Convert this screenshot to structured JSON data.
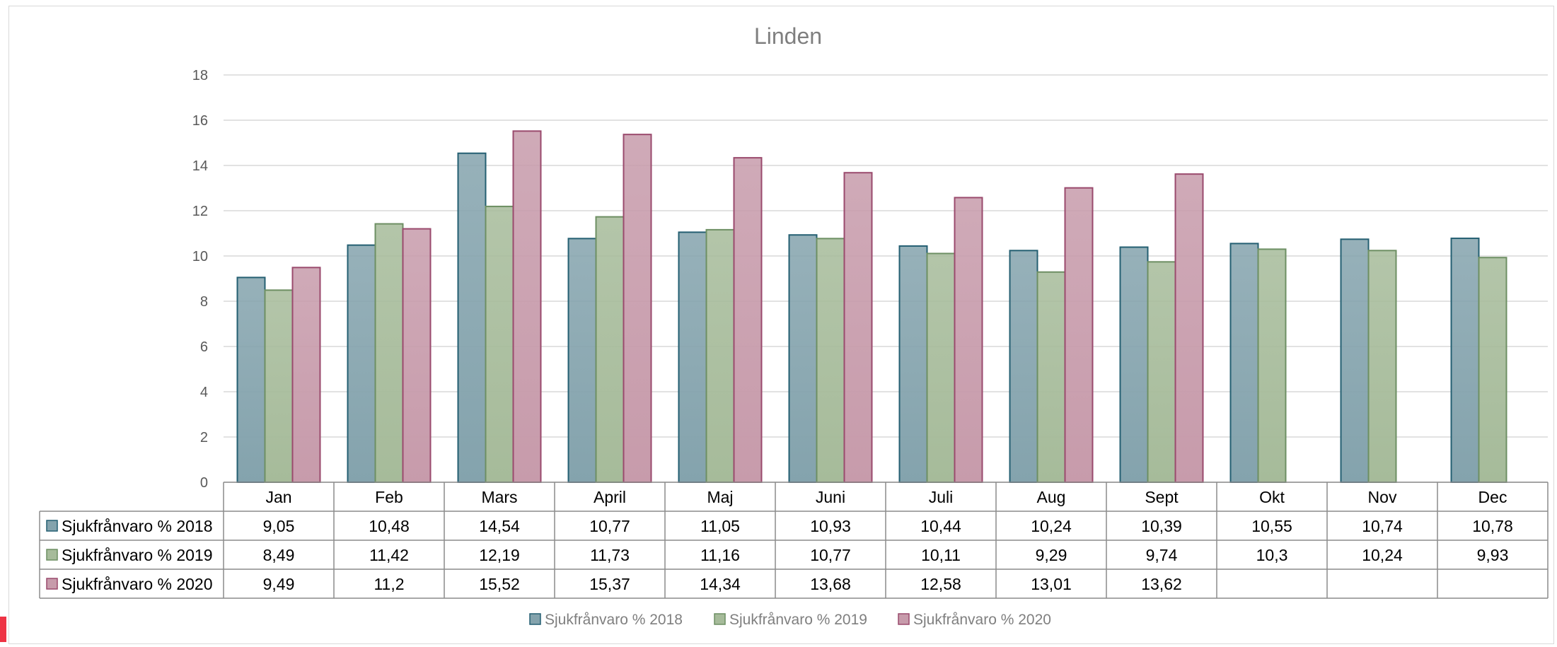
{
  "chart_data": {
    "type": "bar",
    "title": "Linden",
    "categories": [
      "Jan",
      "Feb",
      "Mars",
      "April",
      "Maj",
      "Juni",
      "Juli",
      "Aug",
      "Sept",
      "Okt",
      "Nov",
      "Dec"
    ],
    "ylim": [
      0,
      18
    ],
    "yticks": [
      "0",
      "2",
      "4",
      "6",
      "8",
      "10",
      "12",
      "14",
      "16",
      "18"
    ],
    "grid": true,
    "legend_position": "bottom",
    "series": [
      {
        "name": "Sjukfrånvaro % 2018",
        "color": "#84a3ad",
        "stroke": "#245f72",
        "values": [
          9.05,
          10.48,
          14.54,
          10.77,
          11.05,
          10.93,
          10.44,
          10.24,
          10.39,
          10.55,
          10.74,
          10.78
        ],
        "labels": [
          "9,05",
          "10,48",
          "14,54",
          "10,77",
          "11,05",
          "10,93",
          "10,44",
          "10,24",
          "10,39",
          "10,55",
          "10,74",
          "10,78"
        ]
      },
      {
        "name": "Sjukfrånvaro % 2019",
        "color": "#a6bb9a",
        "stroke": "#6d8f63",
        "values": [
          8.49,
          11.42,
          12.19,
          11.73,
          11.16,
          10.77,
          10.11,
          9.29,
          9.74,
          10.3,
          10.24,
          9.93
        ],
        "labels": [
          "8,49",
          "11,42",
          "12,19",
          "11,73",
          "11,16",
          "10,77",
          "10,11",
          "9,29",
          "9,74",
          "10,3",
          "10,24",
          "9,93"
        ]
      },
      {
        "name": "Sjukfrånvaro % 2020",
        "color": "#c79bab",
        "stroke": "#9a4a6d",
        "values": [
          9.49,
          11.2,
          15.52,
          15.37,
          14.34,
          13.68,
          12.58,
          13.01,
          13.62,
          null,
          null,
          null
        ],
        "labels": [
          "9,49",
          "11,2",
          "15,52",
          "15,37",
          "14,34",
          "13,68",
          "12,58",
          "13,01",
          "13,62",
          "",
          "",
          ""
        ]
      }
    ]
  }
}
